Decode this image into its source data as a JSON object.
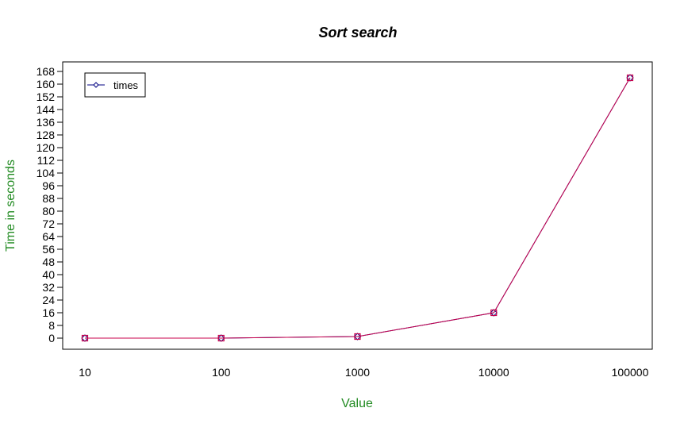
{
  "chart_data": {
    "type": "line",
    "title": "Sort search",
    "xlabel": "Value",
    "ylabel": "Time in seconds",
    "x_categories": [
      "10",
      "100",
      "1000",
      "10000",
      "100000"
    ],
    "y_ticks": [
      0,
      8,
      16,
      24,
      32,
      40,
      48,
      56,
      64,
      72,
      80,
      88,
      96,
      104,
      112,
      120,
      128,
      136,
      144,
      152,
      160,
      168
    ],
    "ylim": [
      -7,
      174
    ],
    "grid": false,
    "legend": {
      "position": "top-left",
      "entries": [
        "times"
      ]
    },
    "series": [
      {
        "name": "times",
        "values": [
          0.0,
          0.0,
          1.0,
          16.0,
          164.0
        ],
        "line_color": "#000080",
        "marker_color": "#000080",
        "marker": "diamond"
      },
      {
        "values": [
          0.0,
          0.0,
          1.0,
          16.0,
          164.0
        ],
        "line_color": "#C8004B",
        "marker_color": "#C8004B",
        "marker": "square"
      }
    ]
  },
  "colors": {
    "axis_label": "#228B22",
    "axis": "#000000",
    "title": "#000000"
  }
}
